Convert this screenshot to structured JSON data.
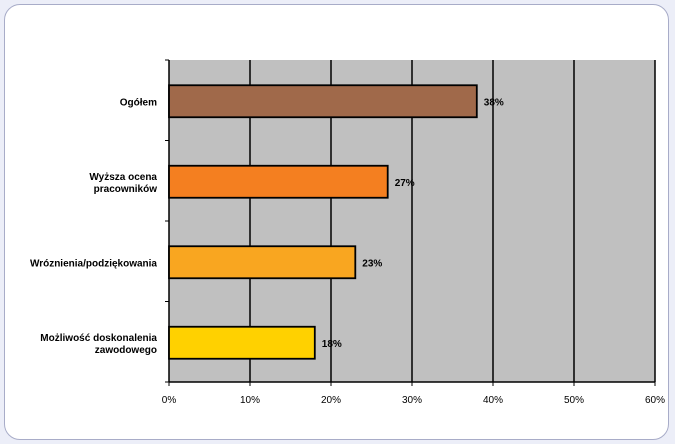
{
  "chart_data": {
    "type": "bar",
    "orientation": "horizontal",
    "categories": [
      [
        "Ogółem"
      ],
      [
        "Wyższa ocena",
        "pracowników"
      ],
      [
        "Wróznienia/podziękowania"
      ],
      [
        "Możliwość doskonalenia",
        "zawodowego"
      ]
    ],
    "values": [
      38,
      27,
      23,
      18
    ],
    "data_labels": [
      "38%",
      "27%",
      "23%",
      "18%"
    ],
    "bar_colors": [
      "#a0694a",
      "#f47f20",
      "#f9a620",
      "#ffd100"
    ],
    "xlim": [
      0,
      60
    ],
    "xticks": [
      0,
      10,
      20,
      30,
      40,
      50,
      60
    ],
    "xtick_labels": [
      "0%",
      "10%",
      "20%",
      "30%",
      "40%",
      "50%",
      "60%"
    ],
    "grid": "vertical",
    "plot_background": "#c0c0c0",
    "title": "",
    "xlabel": "",
    "ylabel": ""
  }
}
